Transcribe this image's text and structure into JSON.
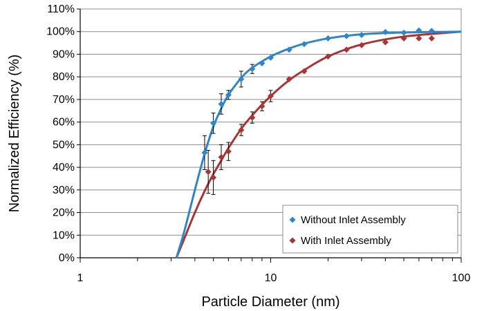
{
  "chart_data": {
    "type": "scatter",
    "xlabel": "Particle Diameter (nm)",
    "ylabel": "Normalized Efficiency (%)",
    "x_scale": "log",
    "xlim": [
      1,
      100
    ],
    "ylim": [
      0,
      110
    ],
    "x_ticks": [
      "1",
      "10",
      "100"
    ],
    "y_ticks": [
      "0%",
      "10%",
      "20%",
      "30%",
      "40%",
      "50%",
      "60%",
      "70%",
      "80%",
      "90%",
      "100%",
      "110%"
    ],
    "grid": "horizontal",
    "legend_position": "bottom-right",
    "series": [
      {
        "name": "Without Inlet Assembly",
        "color": "#2E86C9",
        "marker": "diamond",
        "points": [
          {
            "x": 4.5,
            "y": 46.5,
            "err": 7.5
          },
          {
            "x": 5.0,
            "y": 59.5,
            "err": 4.5
          },
          {
            "x": 5.5,
            "y": 68,
            "err": 4.5
          },
          {
            "x": 6.0,
            "y": 72,
            "err": 2
          },
          {
            "x": 7.0,
            "y": 79,
            "err": 3.5
          },
          {
            "x": 8.0,
            "y": 83.5,
            "err": 2
          },
          {
            "x": 9.0,
            "y": 86,
            "err": 0
          },
          {
            "x": 10.0,
            "y": 88.5,
            "err": 0
          },
          {
            "x": 12.5,
            "y": 92,
            "err": 0
          },
          {
            "x": 15.0,
            "y": 94.5,
            "err": 0
          },
          {
            "x": 20.0,
            "y": 97,
            "err": 0
          },
          {
            "x": 25.0,
            "y": 98,
            "err": 0
          },
          {
            "x": 30.0,
            "y": 98.5,
            "err": 0
          },
          {
            "x": 40.0,
            "y": 99.8,
            "err": 0
          },
          {
            "x": 50.0,
            "y": 99.5,
            "err": 0
          },
          {
            "x": 60.0,
            "y": 100.5,
            "err": 0
          },
          {
            "x": 70.0,
            "y": 100.3,
            "err": 0
          }
        ],
        "fit": [
          [
            3.2,
            0
          ],
          [
            3.5,
            11
          ],
          [
            4.0,
            30
          ],
          [
            4.5,
            46
          ],
          [
            5.0,
            58
          ],
          [
            5.5,
            66
          ],
          [
            6.0,
            72
          ],
          [
            7.0,
            79.5
          ],
          [
            8.0,
            84
          ],
          [
            10.0,
            89
          ],
          [
            12.5,
            92.5
          ],
          [
            15.0,
            94.7
          ],
          [
            20.0,
            97
          ],
          [
            30.0,
            98.8
          ],
          [
            50.0,
            99.6
          ],
          [
            100.0,
            100
          ]
        ]
      },
      {
        "name": "With Inlet Assembly",
        "color": "#A93434",
        "marker": "diamond",
        "points": [
          {
            "x": 4.7,
            "y": 38,
            "err": 9.5
          },
          {
            "x": 5.0,
            "y": 35.5,
            "err": 7.5
          },
          {
            "x": 5.5,
            "y": 44.5,
            "err": 5.5
          },
          {
            "x": 6.0,
            "y": 47,
            "err": 4
          },
          {
            "x": 7.0,
            "y": 56.5,
            "err": 2.5
          },
          {
            "x": 8.0,
            "y": 62,
            "err": 2.5
          },
          {
            "x": 9.0,
            "y": 67,
            "err": 2
          },
          {
            "x": 10.0,
            "y": 71.5,
            "err": 2.5
          },
          {
            "x": 12.5,
            "y": 79,
            "err": 0
          },
          {
            "x": 15.0,
            "y": 82.5,
            "err": 0
          },
          {
            "x": 20.0,
            "y": 89,
            "err": 0
          },
          {
            "x": 25.0,
            "y": 92,
            "err": 0
          },
          {
            "x": 30.0,
            "y": 94,
            "err": 0
          },
          {
            "x": 40.0,
            "y": 95.3,
            "err": 0
          },
          {
            "x": 50.0,
            "y": 97,
            "err": 0
          },
          {
            "x": 60.0,
            "y": 97,
            "err": 0
          },
          {
            "x": 70.0,
            "y": 97,
            "err": 0
          }
        ],
        "fit": [
          [
            3.2,
            0
          ],
          [
            3.5,
            8
          ],
          [
            4.0,
            20
          ],
          [
            4.5,
            29.5
          ],
          [
            5.0,
            37
          ],
          [
            5.5,
            43
          ],
          [
            6.0,
            48.5
          ],
          [
            7.0,
            57
          ],
          [
            8.0,
            63
          ],
          [
            10.0,
            71.5
          ],
          [
            12.5,
            78.5
          ],
          [
            15.0,
            83
          ],
          [
            20.0,
            89
          ],
          [
            30.0,
            94.3
          ],
          [
            50.0,
            97.8
          ],
          [
            100.0,
            100
          ]
        ]
      }
    ]
  }
}
